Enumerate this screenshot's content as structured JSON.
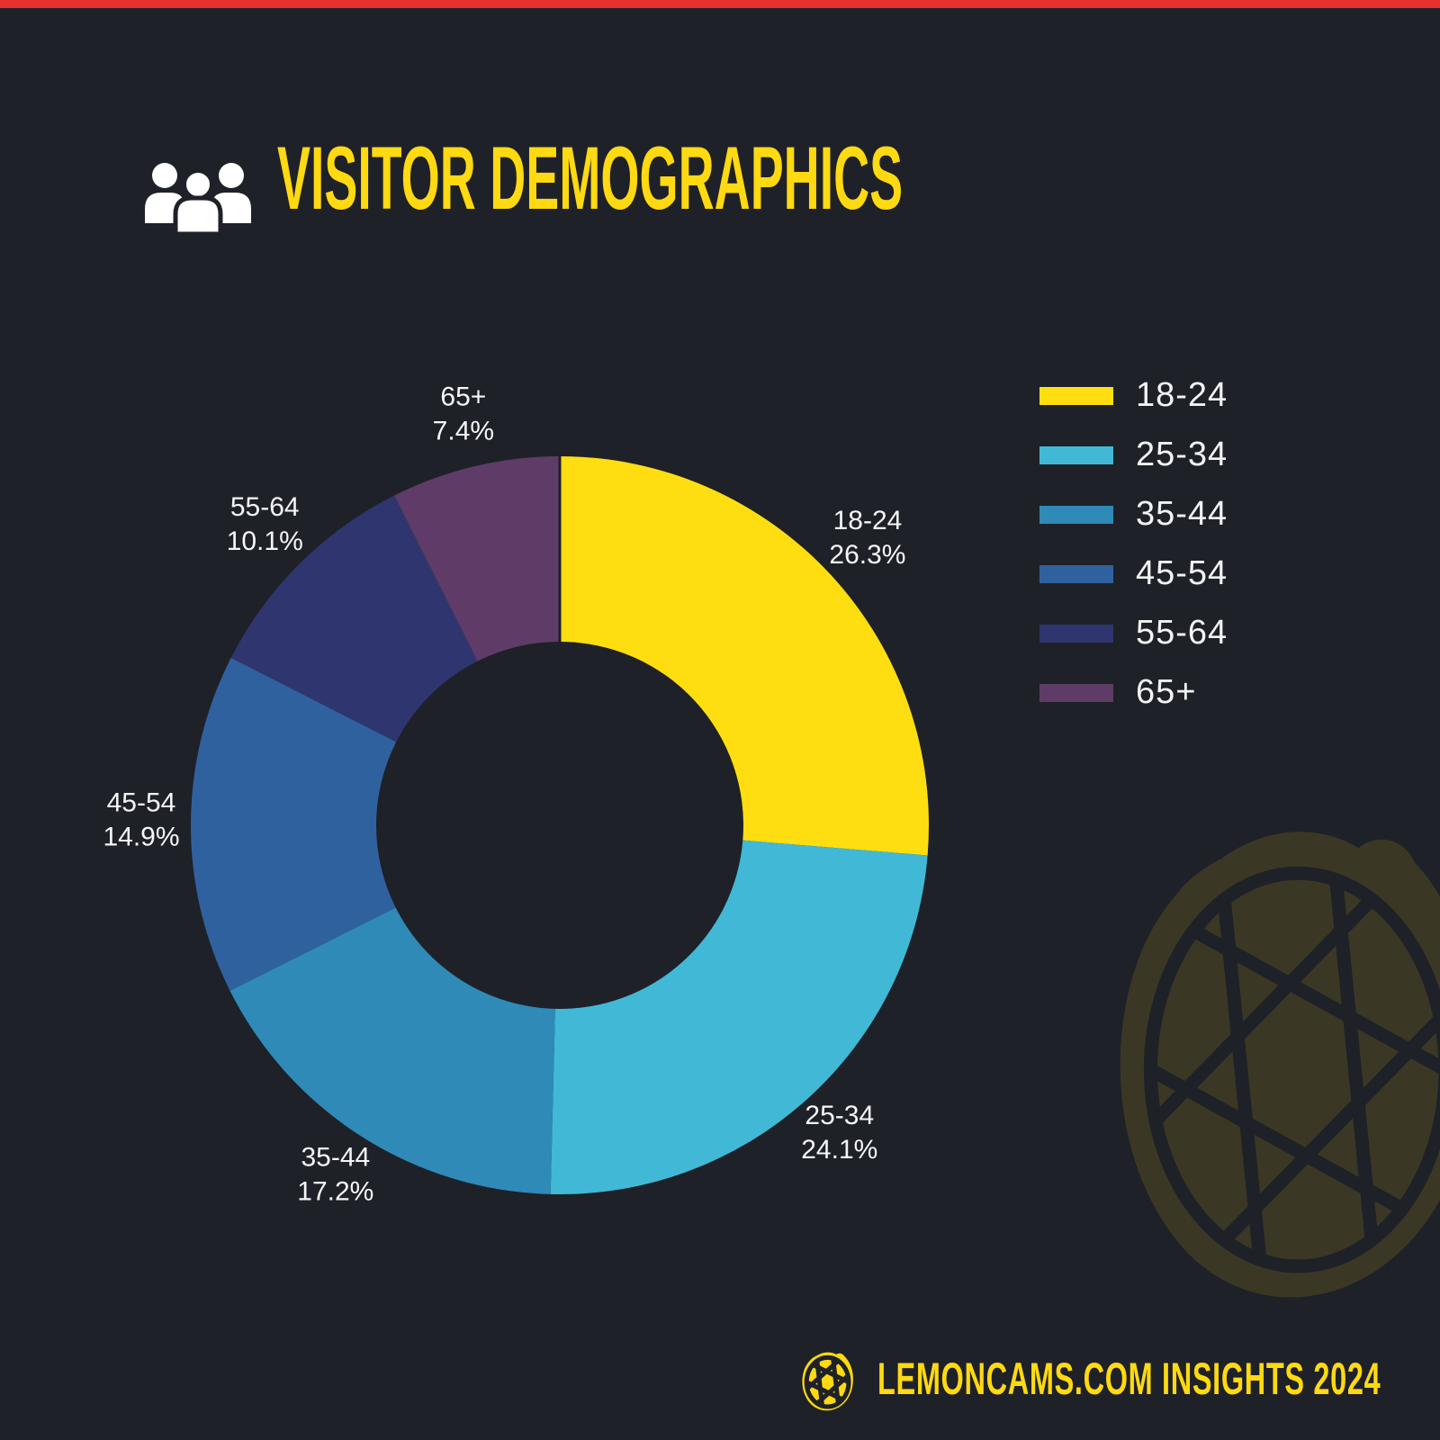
{
  "page": {
    "background_color": "#1f2128",
    "top_strip_color": "#e8302e",
    "accent_yellow": "#ffd911",
    "label_text_color": "#f5f6f8"
  },
  "header": {
    "title": "VISITOR DEMOGRAPHICS",
    "title_color": "#ffd911",
    "icon": "people-icon"
  },
  "chart_data": {
    "type": "pie",
    "variant": "donut",
    "title": "VISITOR DEMOGRAPHICS",
    "categories": [
      "18-24",
      "25-34",
      "35-44",
      "45-54",
      "55-64",
      "65+"
    ],
    "values": [
      26.3,
      24.1,
      17.2,
      14.9,
      10.1,
      7.4
    ],
    "unit": "%",
    "colors": [
      "#ffde11",
      "#41b9d6",
      "#2f8ab8",
      "#30619f",
      "#2f356e",
      "#5e3c67"
    ],
    "start_angle_deg": 0,
    "direction": "clockwise",
    "legend_position": "right",
    "label_format": "{category} {value}%",
    "slice_labels": [
      {
        "category": "18-24",
        "percent_text": "26.3%"
      },
      {
        "category": "25-34",
        "percent_text": "24.1%"
      },
      {
        "category": "35-44",
        "percent_text": "17.2%"
      },
      {
        "category": "45-54",
        "percent_text": "14.9%"
      },
      {
        "category": "55-64",
        "percent_text": "10.1%"
      },
      {
        "category": "65+",
        "percent_text": "7.4%"
      }
    ]
  },
  "legend": {
    "items": [
      {
        "label": "18-24",
        "color": "#ffde11"
      },
      {
        "label": "25-34",
        "color": "#41b9d6"
      },
      {
        "label": "35-44",
        "color": "#2f8ab8"
      },
      {
        "label": "45-54",
        "color": "#30619f"
      },
      {
        "label": "55-64",
        "color": "#2f356e"
      },
      {
        "label": "65+",
        "color": "#5e3c67"
      }
    ]
  },
  "footer": {
    "text": "LEMONCAMS.COM INSIGHTS 2024",
    "color": "#ffd911",
    "icon": "lemon-aperture-icon"
  },
  "watermark": {
    "icon": "lemon-aperture-logo",
    "color": "#ffde11",
    "opacity": 0.12
  }
}
